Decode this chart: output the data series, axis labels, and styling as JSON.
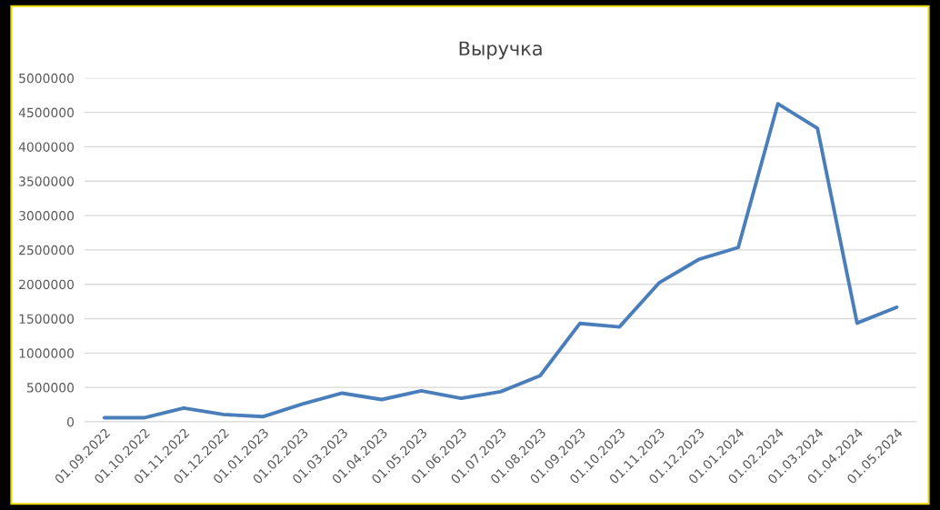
{
  "chart_data": {
    "type": "line",
    "title": "Выручка",
    "categories": [
      "01.09.2022",
      "01.10.2022",
      "01.11.2022",
      "01.12.2022",
      "01.01.2023",
      "01.02.2023",
      "01.03.2023",
      "01.04.2023",
      "01.05.2023",
      "01.06.2023",
      "01.07.2023",
      "01.08.2023",
      "01.09.2023",
      "01.10.2023",
      "01.11.2023",
      "01.12.2023",
      "01.01.2024",
      "01.02.2024",
      "01.03.2024",
      "01.04.2024",
      "01.05.2024"
    ],
    "series": [
      {
        "color": "#4a7ebb",
        "values": [
          58000,
          58000,
          200000,
          106000,
          75000,
          260000,
          416000,
          323000,
          451000,
          341000,
          437000,
          670000,
          1430000,
          1380000,
          2020000,
          2360000,
          2535000,
          4625000,
          4270000,
          1435000,
          1665000
        ]
      }
    ],
    "ylim": [
      0,
      5000000
    ],
    "yticks": [
      0,
      500000,
      1000000,
      1500000,
      2000000,
      2500000,
      3000000,
      3500000,
      4000000,
      4500000,
      5000000
    ],
    "grid": "y",
    "legend": false,
    "marker": "none",
    "line_style": "solid"
  }
}
